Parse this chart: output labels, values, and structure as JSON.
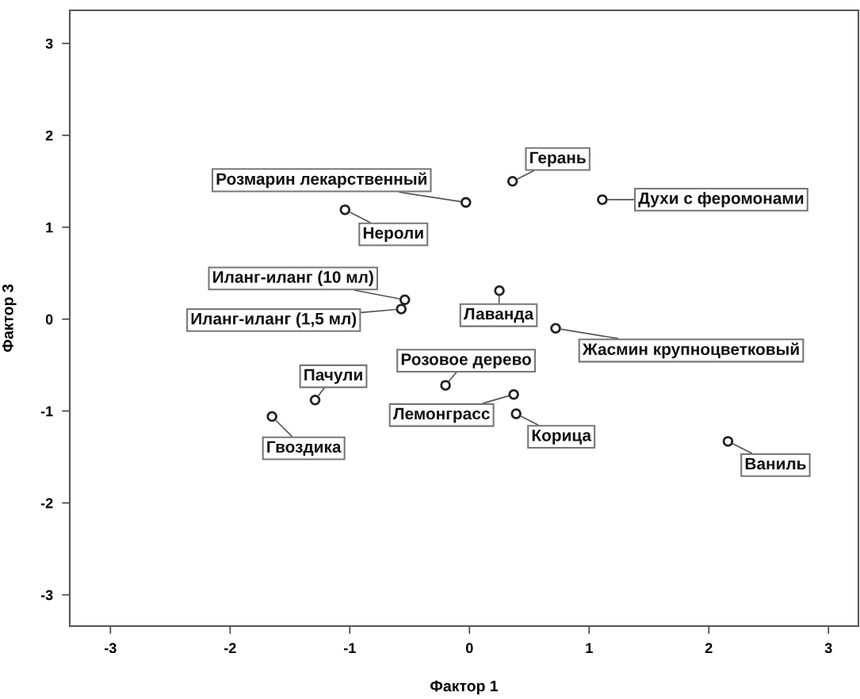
{
  "chart_data": {
    "type": "scatter",
    "xlabel": "Фактор 1",
    "ylabel": "Фактор 3",
    "xlim": [
      -3.34,
      3.25
    ],
    "ylim": [
      -3.34,
      3.36
    ],
    "xticks": [
      -3,
      -2,
      -1,
      0,
      1,
      2,
      3
    ],
    "yticks": [
      -3,
      -2,
      -1,
      0,
      1,
      2,
      3
    ],
    "grid": false,
    "marker": "circle",
    "series": [
      {
        "color": "#222222",
        "x": [
          0.36,
          1.11,
          -0.03,
          -1.04,
          -0.54,
          -0.57,
          0.25,
          0.72,
          -0.2,
          -1.29,
          -1.65,
          0.37,
          0.39,
          2.16
        ],
        "values": [
          1.5,
          1.3,
          1.27,
          1.19,
          0.21,
          0.11,
          0.31,
          -0.1,
          -0.72,
          -0.88,
          -1.06,
          -0.82,
          -1.03,
          -1.33
        ]
      }
    ],
    "annotations": [
      {
        "text": "Герань",
        "x": 0.36,
        "y": 1.5
      },
      {
        "text": "Духи с феромонами",
        "x": 1.11,
        "y": 1.3
      },
      {
        "text": "Розмарин лекарственный",
        "x": -0.03,
        "y": 1.27
      },
      {
        "text": "Нероли",
        "x": -1.04,
        "y": 1.19
      },
      {
        "text": "Иланг-иланг (10 мл)",
        "x": -0.54,
        "y": 0.21
      },
      {
        "text": "Иланг-иланг (1,5 мл)",
        "x": -0.57,
        "y": 0.11
      },
      {
        "text": "Лаванда",
        "x": 0.25,
        "y": 0.31
      },
      {
        "text": "Жасмин крупноцветковый",
        "x": 0.72,
        "y": -0.1
      },
      {
        "text": "Розовое дерево",
        "x": -0.2,
        "y": -0.72
      },
      {
        "text": "Пачули",
        "x": -1.29,
        "y": -0.88
      },
      {
        "text": "Гвоздика",
        "x": -1.65,
        "y": -1.06
      },
      {
        "text": "Лемонграсс",
        "x": 0.37,
        "y": -0.82
      },
      {
        "text": "Корица",
        "x": 0.39,
        "y": -1.03
      },
      {
        "text": "Ваниль",
        "x": 2.16,
        "y": -1.33
      }
    ]
  }
}
